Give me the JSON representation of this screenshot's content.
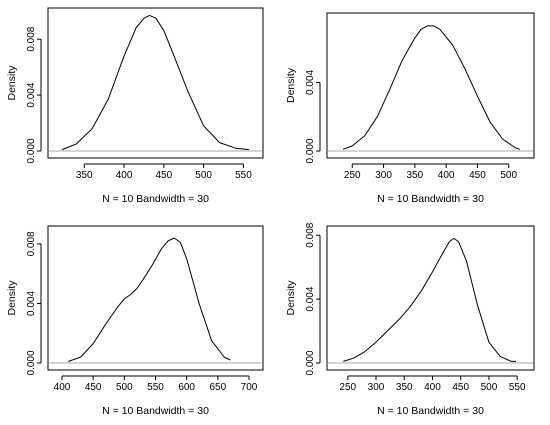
{
  "chart_data": [
    {
      "type": "line",
      "title": "",
      "xlabel": "N = 10   Bandwidth = 30",
      "ylabel": "Density",
      "xlim": [
        322,
        557
      ],
      "ylim": [
        0,
        0.0098
      ],
      "xticks": [
        350,
        400,
        450,
        500,
        550
      ],
      "yticks": [
        0.0,
        0.004,
        0.008
      ],
      "ytick_labels": [
        "0.000",
        "0.004",
        "0.008"
      ],
      "baseline": 0,
      "series": [
        {
          "x": [
            322,
            340,
            360,
            380,
            400,
            415,
            425,
            432,
            440,
            450,
            460,
            480,
            500,
            520,
            540,
            557
          ],
          "y": [
            0.0001,
            0.0005,
            0.0016,
            0.0037,
            0.0068,
            0.0088,
            0.0095,
            0.0097,
            0.0095,
            0.0086,
            0.0072,
            0.0043,
            0.0018,
            0.0006,
            0.0002,
            0.0001
          ]
        }
      ]
    },
    {
      "type": "line",
      "title": "",
      "xlabel": "N = 10   Bandwidth = 30",
      "ylabel": "Density",
      "xlim": [
        232,
        518
      ],
      "ylim": [
        0,
        0.0077
      ],
      "xticks": [
        250,
        300,
        350,
        400,
        450,
        500
      ],
      "yticks": [
        0.0,
        0.004
      ],
      "ytick_labels": [
        "0.000",
        "0.004"
      ],
      "baseline": 0,
      "series": [
        {
          "x": [
            235,
            250,
            270,
            290,
            310,
            330,
            350,
            360,
            370,
            380,
            390,
            410,
            430,
            450,
            470,
            490,
            510,
            518
          ],
          "y": [
            0.0001,
            0.0003,
            0.0009,
            0.002,
            0.0036,
            0.0053,
            0.0066,
            0.0071,
            0.0073,
            0.0073,
            0.0071,
            0.0062,
            0.0048,
            0.0032,
            0.0017,
            0.0007,
            0.0002,
            0.0001
          ]
        }
      ]
    },
    {
      "type": "line",
      "title": "",
      "xlabel": "N = 10   Bandwidth = 30",
      "ylabel": "Density",
      "xlim": [
        400,
        700
      ],
      "ylim": [
        0,
        0.0088
      ],
      "xticks": [
        400,
        450,
        500,
        550,
        600,
        650,
        700
      ],
      "yticks": [
        0.0,
        0.004,
        0.008
      ],
      "ytick_labels": [
        "0.000",
        "0.004",
        "0.008"
      ],
      "baseline": 0,
      "series": [
        {
          "x": [
            410,
            430,
            450,
            470,
            490,
            500,
            510,
            520,
            530,
            545,
            560,
            570,
            580,
            590,
            600,
            620,
            640,
            660,
            670
          ],
          "y": [
            0.0001,
            0.0004,
            0.0013,
            0.0026,
            0.0038,
            0.0043,
            0.0046,
            0.005,
            0.0056,
            0.0066,
            0.0077,
            0.0082,
            0.0084,
            0.0081,
            0.007,
            0.004,
            0.0015,
            0.0004,
            0.0002
          ]
        }
      ]
    },
    {
      "type": "line",
      "title": "",
      "xlabel": "N = 10   Bandwidth = 30",
      "ylabel": "Density",
      "xlim": [
        238,
        555
      ],
      "ylim": [
        0,
        0.0082
      ],
      "xticks": [
        250,
        300,
        350,
        400,
        450,
        500,
        550
      ],
      "yticks": [
        0.0,
        0.004,
        0.008
      ],
      "ytick_labels": [
        "0.000",
        "0.004",
        "0.008"
      ],
      "baseline": 0,
      "series": [
        {
          "x": [
            242,
            260,
            280,
            300,
            320,
            340,
            360,
            380,
            400,
            420,
            430,
            438,
            446,
            460,
            480,
            500,
            520,
            540,
            548
          ],
          "y": [
            0.0001,
            0.0003,
            0.0007,
            0.0013,
            0.002,
            0.0027,
            0.0035,
            0.0045,
            0.0057,
            0.007,
            0.0076,
            0.0078,
            0.0076,
            0.0064,
            0.0036,
            0.0013,
            0.0004,
            0.0001,
            0.0001
          ]
        }
      ]
    }
  ]
}
